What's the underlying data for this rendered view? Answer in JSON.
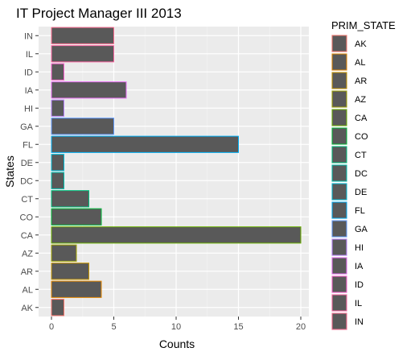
{
  "chart_data": {
    "type": "bar",
    "orientation": "horizontal",
    "title": "IT Project Manager III 2013",
    "xlabel": "Counts",
    "ylabel": "States",
    "categories": [
      "AK",
      "AL",
      "AR",
      "AZ",
      "CA",
      "CO",
      "CT",
      "DC",
      "DE",
      "FL",
      "GA",
      "HI",
      "IA",
      "ID",
      "IL",
      "IN"
    ],
    "values": [
      1,
      4,
      3,
      2,
      20,
      4,
      3,
      1,
      1,
      15,
      5,
      1,
      6,
      1,
      5,
      5
    ],
    "xlim": [
      0,
      20.5
    ],
    "xticks": [
      0,
      5,
      10,
      15,
      20
    ],
    "grid": true,
    "bar_fill": "#595959",
    "panel_background": "#ebebeb",
    "legend": {
      "title": "PRIM_STATE",
      "placement": "right",
      "items": [
        "AK",
        "AL",
        "AR",
        "AZ",
        "CA",
        "CO",
        "CT",
        "DC",
        "DE",
        "FL",
        "GA",
        "HI",
        "IA",
        "ID",
        "IL",
        "IN"
      ]
    },
    "outline_colors": {
      "AK": "#F8766D",
      "AL": "#E58700",
      "AR": "#C99800",
      "AZ": "#A3A500",
      "CA": "#6BB100",
      "CO": "#00BA38",
      "CT": "#00BF7D",
      "DC": "#00C0AF",
      "DE": "#00BCD8",
      "FL": "#00B0F6",
      "GA": "#619CFF",
      "HI": "#B983FF",
      "IA": "#E76BF3",
      "ID": "#FD61D1",
      "IL": "#FF67A4",
      "IN": "#FF6C91"
    }
  }
}
